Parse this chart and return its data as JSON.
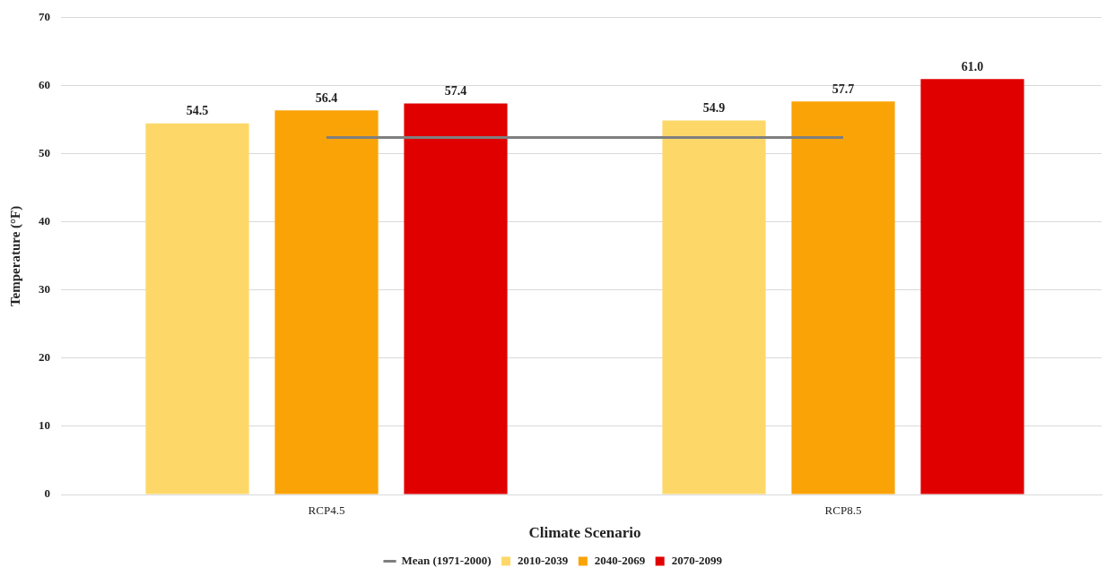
{
  "chart_data": {
    "type": "bar",
    "xlabel": "Climate Scenario",
    "ylabel": "Temperature (°F)",
    "categories": [
      "RCP4.5",
      "RCP8.5"
    ],
    "series": [
      {
        "name": "2010-2039",
        "color": "#fdd868",
        "values": [
          54.5,
          54.9
        ],
        "value_labels": [
          "54.5",
          "54.9"
        ]
      },
      {
        "name": "2040-2069",
        "color": "#faa307",
        "values": [
          56.4,
          57.7
        ],
        "value_labels": [
          "56.4",
          "57.7"
        ]
      },
      {
        "name": "2070-2099",
        "color": "#e00000",
        "values": [
          57.4,
          61.0
        ],
        "value_labels": [
          "57.4",
          "61.0"
        ]
      },
      {
        "name": "Mean (1971-2000)",
        "type": "line",
        "color": "#7f7f7f",
        "values": [
          52.4,
          52.4
        ],
        "marker": "none"
      }
    ],
    "ylim": [
      0,
      70
    ],
    "yticks": [
      0,
      10,
      20,
      30,
      40,
      50,
      60,
      70
    ],
    "grid": "y",
    "legend": "bottom"
  }
}
